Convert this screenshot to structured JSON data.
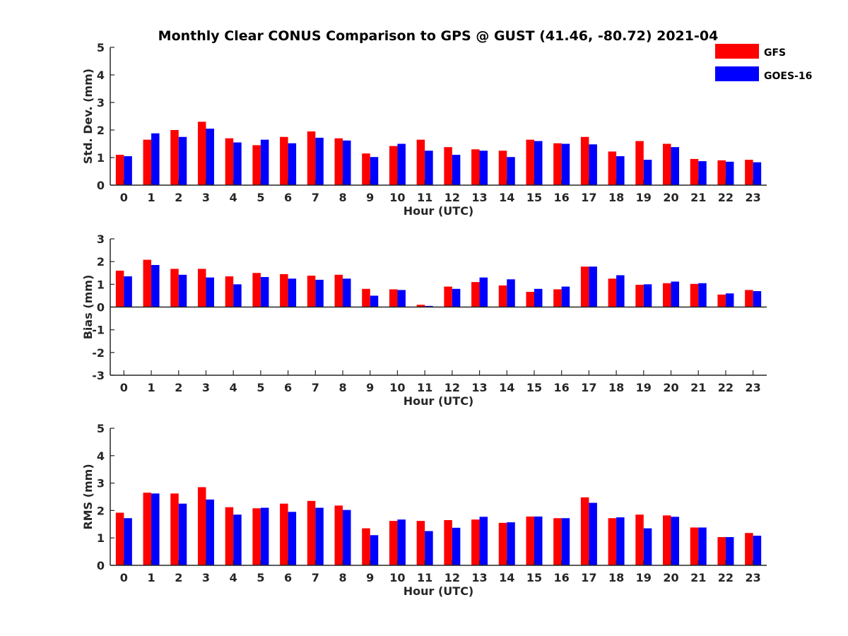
{
  "chart_data": {
    "type": "bar",
    "title": "Monthly Clear CONUS Comparison to GPS @ GUST (41.46, -80.72) 2021-04",
    "legend": {
      "placement": "top-right",
      "entries": [
        {
          "name": "GFS",
          "color": "#ff0000"
        },
        {
          "name": "GOES-16",
          "color": "#0000ff"
        }
      ]
    },
    "categories": [
      "0",
      "1",
      "2",
      "3",
      "4",
      "5",
      "6",
      "7",
      "8",
      "9",
      "10",
      "11",
      "12",
      "13",
      "14",
      "15",
      "16",
      "17",
      "18",
      "19",
      "20",
      "21",
      "22",
      "23"
    ],
    "panels": [
      {
        "id": "std",
        "ylabel": "Std. Dev. (mm)",
        "xlabel": "Hour (UTC)",
        "ylim": [
          0,
          5
        ],
        "yticks": [
          0,
          1,
          2,
          3,
          4,
          5
        ],
        "series": [
          {
            "name": "GFS",
            "values": [
              1.1,
              1.65,
              2.0,
              2.3,
              1.7,
              1.45,
              1.75,
              1.95,
              1.7,
              1.15,
              1.42,
              1.65,
              1.38,
              1.3,
              1.25,
              1.65,
              1.52,
              1.75,
              1.22,
              1.6,
              1.5,
              0.95,
              0.9,
              0.92
            ]
          },
          {
            "name": "GOES-16",
            "values": [
              1.05,
              1.88,
              1.75,
              2.05,
              1.55,
              1.65,
              1.52,
              1.72,
              1.62,
              1.02,
              1.5,
              1.25,
              1.1,
              1.25,
              1.02,
              1.6,
              1.5,
              1.48,
              1.05,
              0.92,
              1.38,
              0.87,
              0.85,
              0.83
            ]
          }
        ]
      },
      {
        "id": "bias",
        "ylabel": "Bias (mm)",
        "xlabel": "Hour (UTC)",
        "ylim": [
          -3,
          3
        ],
        "yticks": [
          -3,
          -2,
          -1,
          0,
          1,
          2,
          3
        ],
        "series": [
          {
            "name": "GFS",
            "values": [
              1.6,
              2.08,
              1.68,
              1.68,
              1.35,
              1.5,
              1.45,
              1.38,
              1.42,
              0.8,
              0.78,
              0.1,
              0.9,
              1.1,
              0.95,
              0.67,
              0.78,
              1.78,
              1.25,
              0.98,
              1.05,
              1.02,
              0.55,
              0.75
            ]
          },
          {
            "name": "GOES-16",
            "values": [
              1.35,
              1.85,
              1.42,
              1.3,
              1.0,
              1.32,
              1.25,
              1.2,
              1.25,
              0.5,
              0.75,
              0.05,
              0.8,
              1.3,
              1.22,
              0.8,
              0.9,
              1.78,
              1.4,
              1.0,
              1.12,
              1.05,
              0.6,
              0.7
            ]
          }
        ]
      },
      {
        "id": "rms",
        "ylabel": "RMS (mm)",
        "xlabel": "Hour (UTC)",
        "ylim": [
          0,
          5
        ],
        "yticks": [
          0,
          1,
          2,
          3,
          4,
          5
        ],
        "series": [
          {
            "name": "GFS",
            "values": [
              1.92,
              2.65,
              2.62,
              2.85,
              2.12,
              2.08,
              2.25,
              2.35,
              2.18,
              1.35,
              1.62,
              1.62,
              1.65,
              1.67,
              1.55,
              1.78,
              1.72,
              2.48,
              1.72,
              1.85,
              1.82,
              1.38,
              1.03,
              1.18
            ]
          },
          {
            "name": "GOES-16",
            "values": [
              1.72,
              2.62,
              2.25,
              2.4,
              1.85,
              2.1,
              1.95,
              2.1,
              2.02,
              1.1,
              1.67,
              1.25,
              1.37,
              1.77,
              1.57,
              1.78,
              1.72,
              2.28,
              1.75,
              1.35,
              1.77,
              1.38,
              1.03,
              1.08
            ]
          }
        ]
      }
    ]
  }
}
